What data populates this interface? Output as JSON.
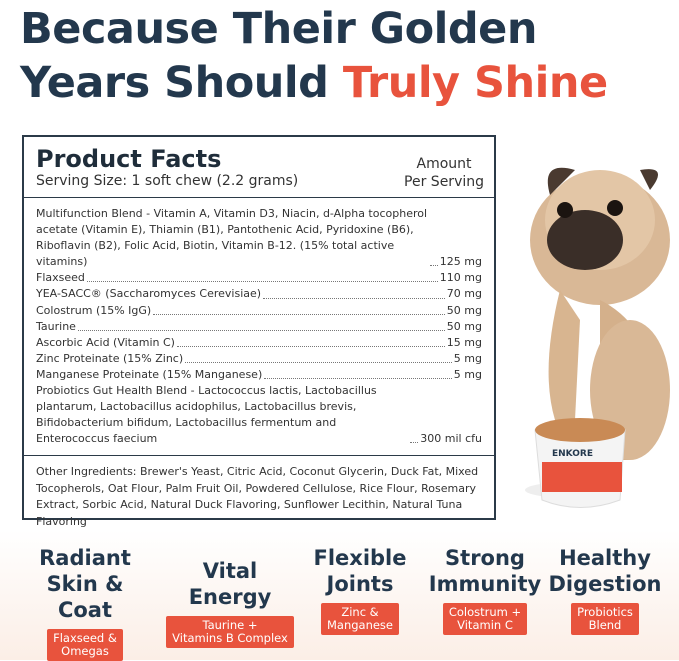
{
  "header": {
    "line1": "Because Their Golden",
    "line2": "Years Should",
    "highlight": "Truly Shine"
  },
  "facts": {
    "title": "Product Facts",
    "serving": "Serving Size: 1 soft chew (2.2 grams)",
    "amount_heading": [
      "Amount",
      "Per Serving"
    ],
    "rows": [
      {
        "name": "Multifunction Blend - Vitamin A, Vitamin D3, Niacin, d-Alpha tocopherol acetate (Vitamin E), Thiamin (B1), Pantothenic Acid, Pyridoxine (B6), Riboflavin (B2), Folic Acid, Biotin, Vitamin B-12. (15% total active vitamins)",
        "amount": "125 mg"
      },
      {
        "name": "Flaxseed",
        "amount": "110 mg"
      },
      {
        "name": "YEA-SACC® (Saccharomyces Cerevisiae)",
        "amount": "70 mg"
      },
      {
        "name": "Colostrum (15% IgG)",
        "amount": "50 mg"
      },
      {
        "name": "Taurine",
        "amount": "50 mg"
      },
      {
        "name": "Ascorbic Acid (Vitamin C)",
        "amount": "15 mg"
      },
      {
        "name": "Zinc Proteinate (15% Zinc)",
        "amount": "5 mg"
      },
      {
        "name": "Manganese Proteinate (15% Manganese)",
        "amount": "5 mg"
      },
      {
        "name": "Probiotics Gut Health Blend - Lactococcus lactis, Lactobacillus plantarum, Lactobacillus acidophilus, Lactobacillus brevis, Bifidobacterium bifidum, Lactobacillus fermentum and Enterococcus faecium",
        "amount": "300 mil cfu"
      }
    ],
    "other": "Other Ingredients: Brewer's Yeast, Citric Acid, Coconut Glycerin, Duck Fat, Mixed Tocopherols, Oat Flour, Palm Fruit Oil, Powdered Cellulose, Rice Flour, Rosemary Extract, Sorbic Acid, Natural Duck Flavoring, Sunflower Lecithin, Natural Tuna Flavoring"
  },
  "product": {
    "brand": "ENKORE"
  },
  "benefits": [
    {
      "title": [
        "Radiant",
        "Skin & Coat"
      ],
      "tag": [
        "Flaxseed &",
        "Omegas"
      ]
    },
    {
      "title": [
        "Vital Energy"
      ],
      "tag": [
        "Taurine +",
        "Vitamins B Complex"
      ]
    },
    {
      "title": [
        "Flexible",
        "Joints"
      ],
      "tag": [
        "Zinc &",
        "Manganese"
      ]
    },
    {
      "title": [
        "Strong",
        "Immunity"
      ],
      "tag": [
        "Colostrum +",
        "Vitamin C"
      ]
    },
    {
      "title": [
        "Healthy",
        "Digestion"
      ],
      "tag": [
        "Probiotics",
        "Blend"
      ]
    }
  ]
}
